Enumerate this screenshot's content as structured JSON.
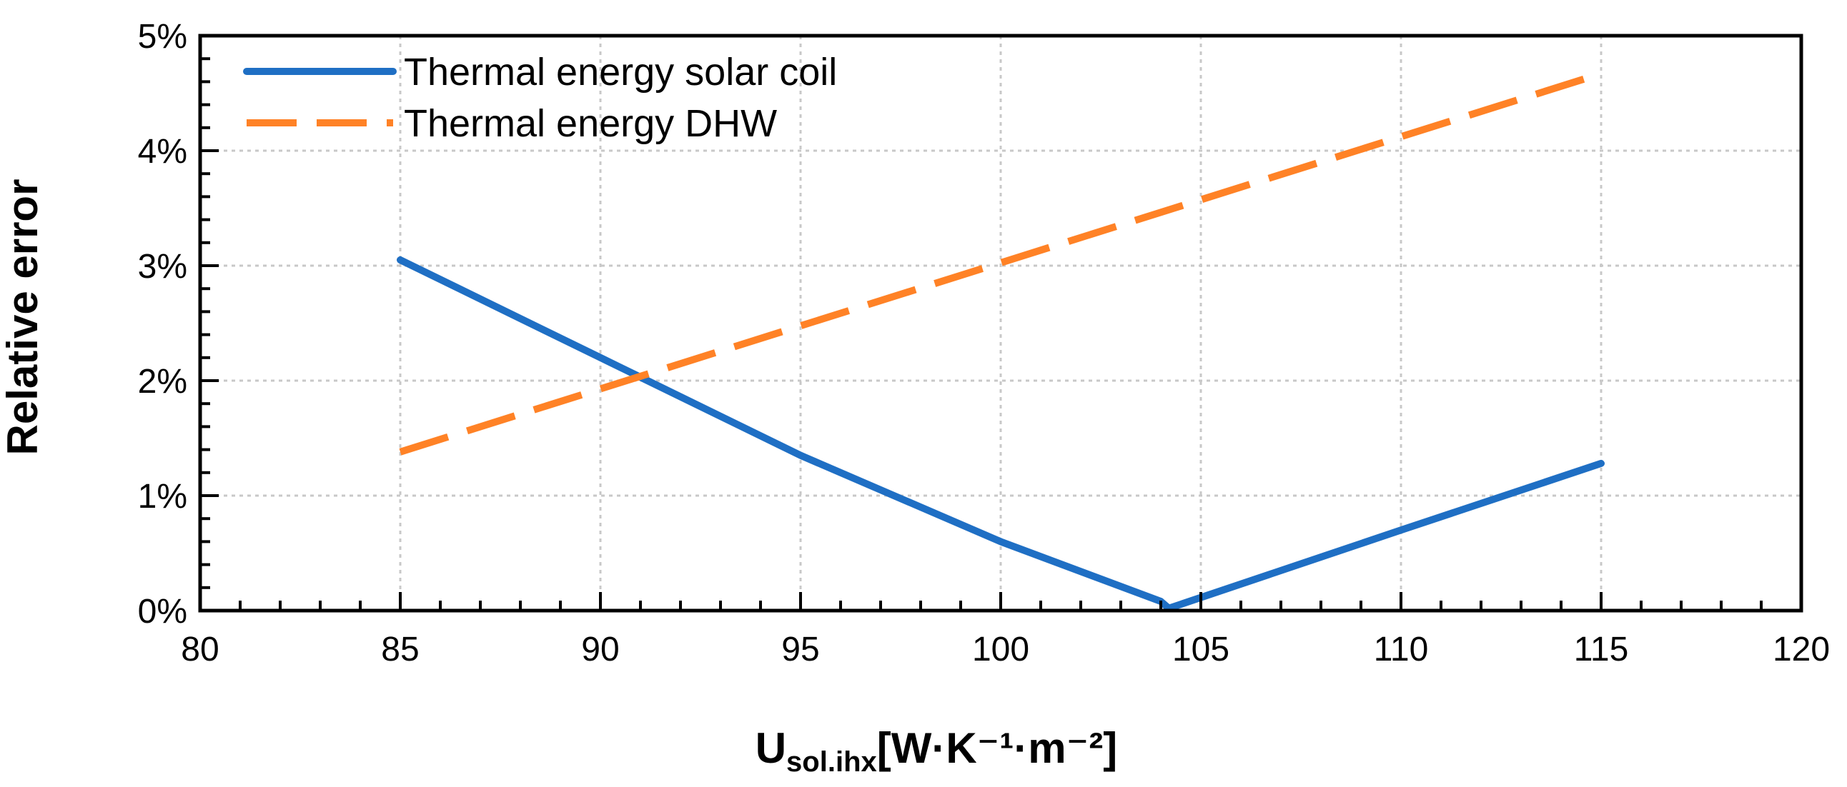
{
  "chart_data": {
    "type": "line",
    "title": "",
    "xlabel": {
      "main": "U",
      "sub": "sol.ihx",
      "unit": "[W·K⁻¹·m⁻²]"
    },
    "ylabel": "Relative error",
    "xlim": [
      80,
      120
    ],
    "ylim": [
      0,
      5
    ],
    "x_ticks": [
      80,
      85,
      90,
      95,
      100,
      105,
      110,
      115,
      120
    ],
    "x_tick_labels": [
      "80",
      "85",
      "90",
      "95",
      "100",
      "105",
      "110",
      "115",
      "120"
    ],
    "y_ticks": [
      0,
      1,
      2,
      3,
      4,
      5
    ],
    "y_tick_labels": [
      "0%",
      "1%",
      "2%",
      "3%",
      "4%",
      "5%"
    ],
    "grid": true,
    "legend_position": "top-left",
    "series": [
      {
        "name": "Thermal energy solar coil",
        "color": "#1f6fc4",
        "style": "solid",
        "x": [
          85,
          90,
          95,
          100,
          104,
          104.2,
          110,
          115
        ],
        "values": [
          3.05,
          2.2,
          1.35,
          0.6,
          0.08,
          0.02,
          0.7,
          1.28
        ]
      },
      {
        "name": "Thermal energy DHW",
        "color": "#ff8226",
        "style": "dashed",
        "x": [
          85,
          115
        ],
        "values": [
          1.38,
          4.67
        ]
      }
    ]
  }
}
